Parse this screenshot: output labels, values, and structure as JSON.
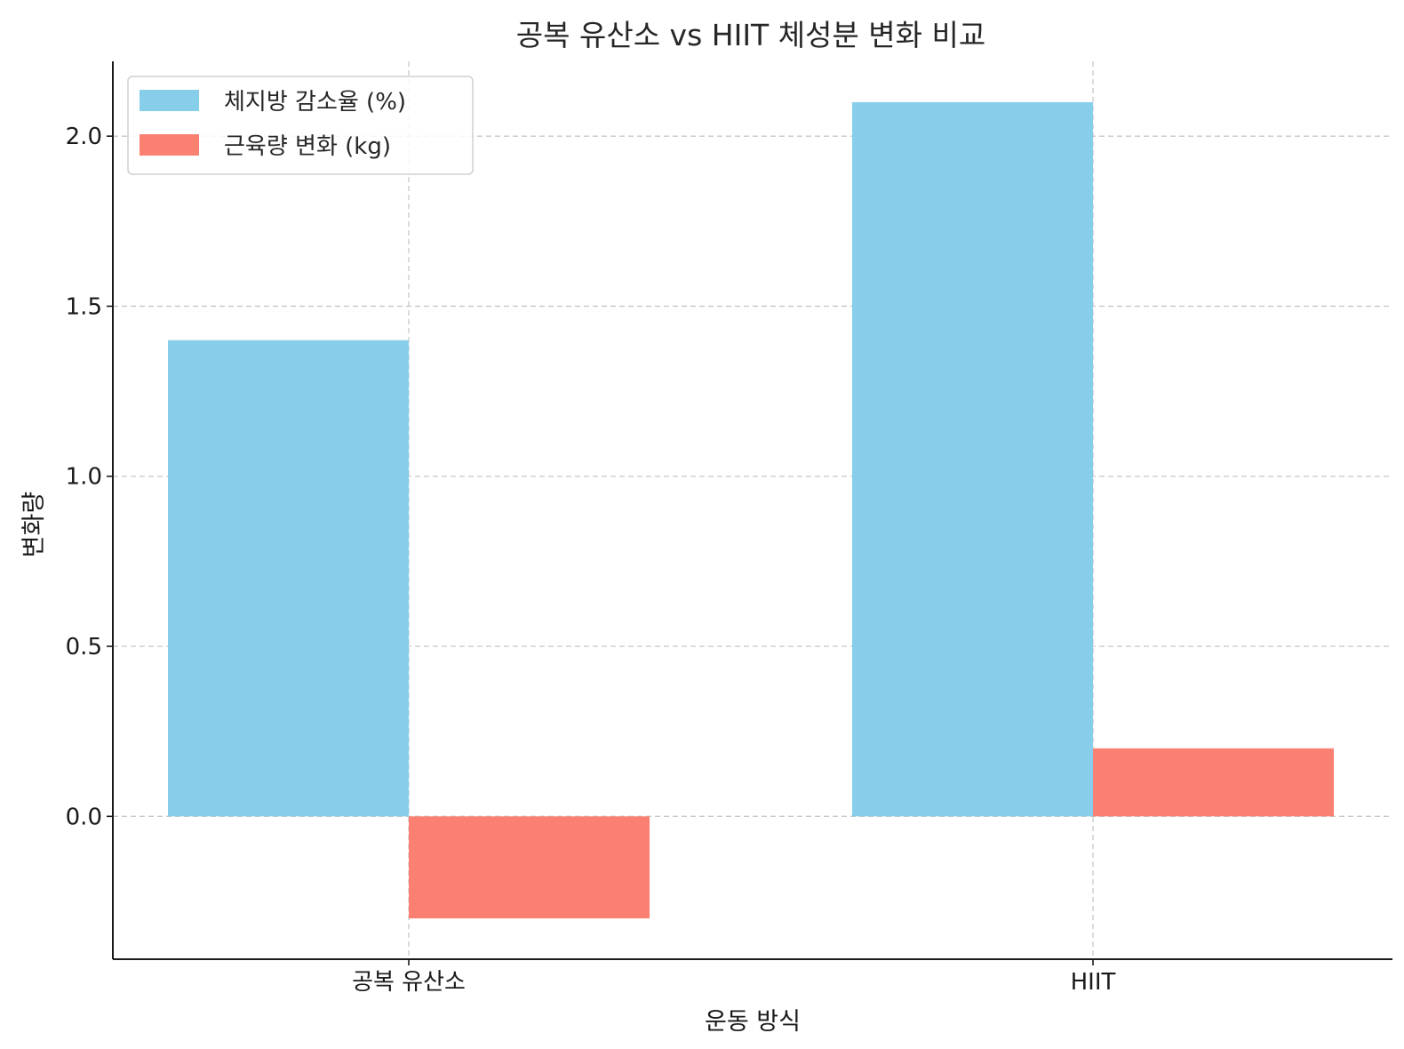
{
  "chart_data": {
    "type": "bar",
    "title": "공복 유산소 vs HIIT 체성분 변화 비교",
    "xlabel": "운동 방식",
    "ylabel": "변화량",
    "categories": [
      "공복 유산소",
      "HIIT"
    ],
    "series": [
      {
        "name": "체지방 감소율 (%)",
        "values": [
          1.4,
          2.1
        ],
        "color": "#87CEEB"
      },
      {
        "name": "근육량 변화 (kg)",
        "values": [
          -0.3,
          0.2
        ],
        "color": "#FA8072"
      }
    ],
    "ylim": [
      -0.42,
      2.22
    ],
    "yticks": [
      "0.0",
      "0.5",
      "1.0",
      "1.5",
      "2.0"
    ],
    "grid": true,
    "legend": "top-left"
  }
}
